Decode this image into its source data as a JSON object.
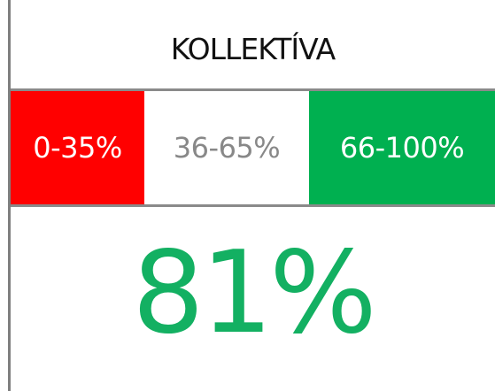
{
  "header": {
    "title": "KOLLEKTÍVA"
  },
  "ranges": [
    {
      "label": "0-35%"
    },
    {
      "label": "36-65%"
    },
    {
      "label": "66-100%"
    }
  ],
  "score": {
    "value": "81%"
  }
}
